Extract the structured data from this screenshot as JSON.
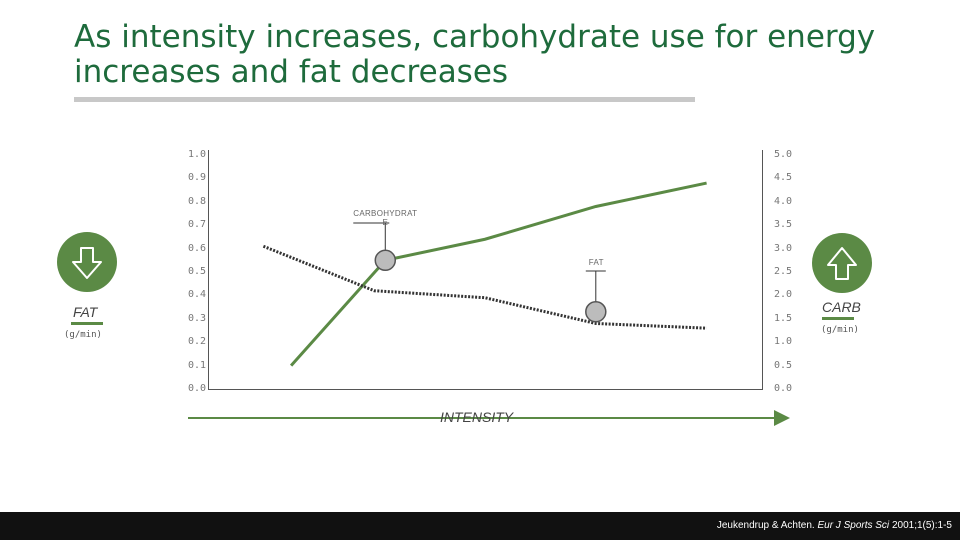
{
  "title": "As intensity increases, carbohydrate use for energy increases and fat decreases",
  "colors": {
    "title": "#1e6b3c",
    "carb_line": "#5b8a45",
    "fat_line": "#333333",
    "marker_fill": "#bcbcbc",
    "footer_bg": "#111111"
  },
  "icons": {
    "fat": "arrow-down-icon",
    "carb": "arrow-up-icon"
  },
  "fat_side": {
    "label": "FAT",
    "unit": "(g/min)"
  },
  "carb_side": {
    "label": "CARB",
    "unit": "(g/min)"
  },
  "citation": {
    "authors": "Jeukendrup & Achten.",
    "journal": "Eur J Sports Sci",
    "details": "2001;1(5):1-5"
  },
  "chart_data": {
    "type": "line",
    "title": "",
    "xlabel": "INTENSITY",
    "left_axis": {
      "ticks": [
        "0.0",
        "0.1",
        "0.2",
        "0.3",
        "0.4",
        "0.5",
        "0.6",
        "0.7",
        "0.8",
        "0.9",
        "1.0"
      ],
      "ylim": [
        0,
        1.0
      ]
    },
    "right_axis": {
      "ticks": [
        "0.0",
        "0.5",
        "1.0",
        "1.5",
        "2.0",
        "2.5",
        "3.0",
        "3.5",
        "4.0",
        "4.5",
        "5.0"
      ],
      "ylim": [
        0,
        5.0
      ]
    },
    "x": [
      0.1,
      0.3,
      0.5,
      0.7,
      0.9
    ],
    "xlim": [
      0,
      1
    ],
    "series": [
      {
        "name": "CARBOHYDRATE",
        "axis": "right",
        "style": "solid",
        "points": [
          [
            0.15,
            0.5
          ],
          [
            0.32,
            2.75
          ],
          [
            0.5,
            3.2
          ],
          [
            0.7,
            3.9
          ],
          [
            0.9,
            4.4
          ]
        ]
      },
      {
        "name": "FAT",
        "axis": "left",
        "style": "dotted",
        "points": [
          [
            0.1,
            0.61
          ],
          [
            0.3,
            0.42
          ],
          [
            0.5,
            0.39
          ],
          [
            0.7,
            0.28
          ],
          [
            0.9,
            0.26
          ]
        ]
      }
    ],
    "annotations": [
      {
        "text": "CARBOHYDRAT",
        "text2": "E",
        "series": "CARBOHYDRATE",
        "point": [
          0.32,
          2.75
        ]
      },
      {
        "text": "FAT",
        "series": "FAT",
        "point": [
          0.7,
          0.33
        ]
      }
    ],
    "grid": false
  }
}
